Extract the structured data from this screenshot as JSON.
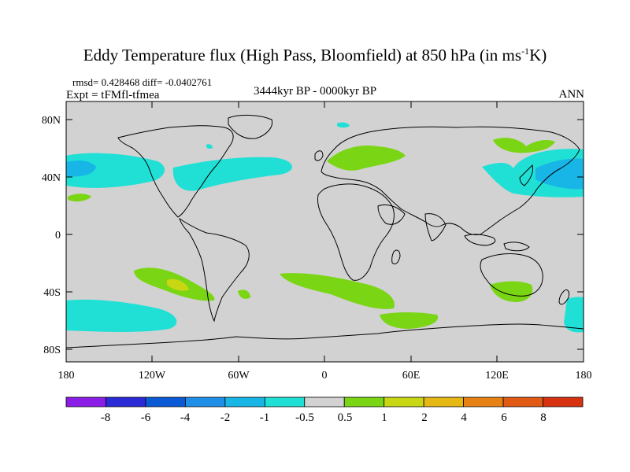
{
  "title": {
    "main": "Eddy Temperature flux (High Pass, Bloomfield) at 850 hPa (in ms",
    "sup": "-1",
    "end": "K)"
  },
  "stats": "rmsd= 0.428468 diff= -0.0402761",
  "expt": "Expt = tFMfl-tfmea",
  "period": "3444kyr BP - 0000kyr BP",
  "season": "ANN",
  "map": {
    "lat_ticks": [
      "80N",
      "40N",
      "0",
      "40S",
      "80S"
    ],
    "lon_ticks": [
      "180",
      "120W",
      "60W",
      "0",
      "60E",
      "120E",
      "180"
    ]
  },
  "colorbar": {
    "colors": [
      "#8a1ee6",
      "#2a2ad6",
      "#0a5ad6",
      "#1e8ee6",
      "#18b6e6",
      "#20e0d6",
      "#d2d2d2",
      "#7ad614",
      "#c8d614",
      "#e6b814",
      "#e68214",
      "#e05a14",
      "#d63210"
    ],
    "labels": [
      "-8",
      "-6",
      "-4",
      "-2",
      "-1",
      "-0.5",
      "0.5",
      "1",
      "2",
      "4",
      "6",
      "8"
    ]
  },
  "legend_colors": {
    "neutral": "#d2d2d2",
    "negative_weak": "#20e0d6",
    "negative_mid": "#18b6e6",
    "positive_weak": "#7ad614",
    "positive_mid": "#c8d614"
  }
}
